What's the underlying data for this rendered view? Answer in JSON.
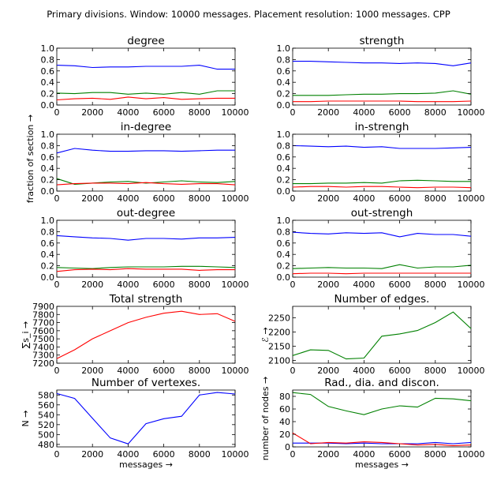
{
  "suptitle": "Primary divisions. Window: 10000 messages. Placement resolution: 1000 messages. CPP",
  "shared_ylabel_frac": "fraction of section →",
  "colors": {
    "blue": "#0000ff",
    "green": "#008000",
    "red": "#ff0000"
  },
  "chart_data": [
    {
      "id": "degree",
      "type": "line",
      "title": "degree",
      "xlim": [
        0,
        10000
      ],
      "ylim": [
        0,
        1.0
      ],
      "xticks": [
        "0",
        "2000",
        "4000",
        "6000",
        "8000",
        "10000"
      ],
      "yticks": [
        "0.0",
        "0.2",
        "0.4",
        "0.6",
        "0.8",
        "1.0"
      ],
      "x": [
        0,
        1000,
        2000,
        3000,
        4000,
        5000,
        6000,
        7000,
        8000,
        9000,
        10000
      ],
      "series": [
        {
          "color": "#0000ff",
          "values": [
            0.7,
            0.69,
            0.66,
            0.67,
            0.67,
            0.68,
            0.68,
            0.68,
            0.7,
            0.63,
            0.63
          ]
        },
        {
          "color": "#008000",
          "values": [
            0.21,
            0.2,
            0.22,
            0.22,
            0.19,
            0.21,
            0.19,
            0.22,
            0.19,
            0.25,
            0.25
          ]
        },
        {
          "color": "#ff0000",
          "values": [
            0.09,
            0.11,
            0.12,
            0.1,
            0.14,
            0.11,
            0.13,
            0.1,
            0.11,
            0.12,
            0.12
          ]
        }
      ]
    },
    {
      "id": "strength",
      "type": "line",
      "title": "strength",
      "xlim": [
        0,
        10000
      ],
      "ylim": [
        0,
        1.0
      ],
      "xticks": [
        "0",
        "2000",
        "4000",
        "6000",
        "8000",
        "10000"
      ],
      "yticks": [
        "0.0",
        "0.2",
        "0.4",
        "0.6",
        "0.8",
        "1.0"
      ],
      "x": [
        0,
        1000,
        2000,
        3000,
        4000,
        5000,
        6000,
        7000,
        8000,
        9000,
        10000
      ],
      "series": [
        {
          "color": "#0000ff",
          "values": [
            0.77,
            0.77,
            0.76,
            0.75,
            0.74,
            0.74,
            0.73,
            0.74,
            0.73,
            0.69,
            0.74
          ]
        },
        {
          "color": "#008000",
          "values": [
            0.17,
            0.17,
            0.17,
            0.18,
            0.19,
            0.19,
            0.2,
            0.2,
            0.21,
            0.25,
            0.19
          ]
        },
        {
          "color": "#ff0000",
          "values": [
            0.06,
            0.06,
            0.07,
            0.07,
            0.07,
            0.07,
            0.07,
            0.06,
            0.06,
            0.06,
            0.07
          ]
        }
      ]
    },
    {
      "id": "in-degree",
      "type": "line",
      "title": "in-degree",
      "xlim": [
        0,
        10000
      ],
      "ylim": [
        0,
        1.0
      ],
      "xticks": [
        "0",
        "2000",
        "4000",
        "6000",
        "8000",
        "10000"
      ],
      "yticks": [
        "0.0",
        "0.2",
        "0.4",
        "0.6",
        "0.8",
        "1.0"
      ],
      "x": [
        0,
        1000,
        2000,
        3000,
        4000,
        5000,
        6000,
        7000,
        8000,
        9000,
        10000
      ],
      "series": [
        {
          "color": "#0000ff",
          "values": [
            0.67,
            0.75,
            0.72,
            0.7,
            0.7,
            0.71,
            0.71,
            0.7,
            0.71,
            0.72,
            0.72
          ]
        },
        {
          "color": "#008000",
          "values": [
            0.22,
            0.12,
            0.14,
            0.16,
            0.17,
            0.14,
            0.16,
            0.18,
            0.16,
            0.15,
            0.17
          ]
        },
        {
          "color": "#ff0000",
          "values": [
            0.11,
            0.13,
            0.14,
            0.14,
            0.13,
            0.15,
            0.13,
            0.12,
            0.13,
            0.13,
            0.11
          ]
        }
      ]
    },
    {
      "id": "in-strengh",
      "type": "line",
      "title": "in-strengh",
      "xlim": [
        0,
        10000
      ],
      "ylim": [
        0,
        1.0
      ],
      "xticks": [
        "0",
        "2000",
        "4000",
        "6000",
        "8000",
        "10000"
      ],
      "yticks": [
        "0.0",
        "0.2",
        "0.4",
        "0.6",
        "0.8",
        "1.0"
      ],
      "x": [
        0,
        1000,
        2000,
        3000,
        4000,
        5000,
        6000,
        7000,
        8000,
        9000,
        10000
      ],
      "series": [
        {
          "color": "#0000ff",
          "values": [
            0.8,
            0.79,
            0.78,
            0.79,
            0.77,
            0.78,
            0.75,
            0.75,
            0.75,
            0.76,
            0.77
          ]
        },
        {
          "color": "#008000",
          "values": [
            0.13,
            0.13,
            0.14,
            0.14,
            0.15,
            0.14,
            0.18,
            0.19,
            0.18,
            0.17,
            0.17
          ]
        },
        {
          "color": "#ff0000",
          "values": [
            0.07,
            0.08,
            0.08,
            0.07,
            0.08,
            0.08,
            0.07,
            0.06,
            0.07,
            0.07,
            0.06
          ]
        }
      ]
    },
    {
      "id": "out-degree",
      "type": "line",
      "title": "out-degree",
      "xlim": [
        0,
        10000
      ],
      "ylim": [
        0,
        1.0
      ],
      "xticks": [
        "0",
        "2000",
        "4000",
        "6000",
        "8000",
        "10000"
      ],
      "yticks": [
        "0.0",
        "0.2",
        "0.4",
        "0.6",
        "0.8",
        "1.0"
      ],
      "x": [
        0,
        1000,
        2000,
        3000,
        4000,
        5000,
        6000,
        7000,
        8000,
        9000,
        10000
      ],
      "series": [
        {
          "color": "#0000ff",
          "values": [
            0.73,
            0.71,
            0.69,
            0.68,
            0.65,
            0.68,
            0.68,
            0.67,
            0.69,
            0.69,
            0.7
          ]
        },
        {
          "color": "#008000",
          "values": [
            0.17,
            0.16,
            0.15,
            0.17,
            0.18,
            0.18,
            0.18,
            0.19,
            0.19,
            0.18,
            0.17
          ]
        },
        {
          "color": "#ff0000",
          "values": [
            0.1,
            0.13,
            0.14,
            0.13,
            0.15,
            0.14,
            0.14,
            0.14,
            0.12,
            0.13,
            0.13
          ]
        }
      ]
    },
    {
      "id": "out-strengh",
      "type": "line",
      "title": "out-strengh",
      "xlim": [
        0,
        10000
      ],
      "ylim": [
        0,
        1.0
      ],
      "xticks": [
        "0",
        "2000",
        "4000",
        "6000",
        "8000",
        "10000"
      ],
      "yticks": [
        "0.0",
        "0.2",
        "0.4",
        "0.6",
        "0.8",
        "1.0"
      ],
      "x": [
        0,
        1000,
        2000,
        3000,
        4000,
        5000,
        6000,
        7000,
        8000,
        9000,
        10000
      ],
      "series": [
        {
          "color": "#0000ff",
          "values": [
            0.79,
            0.77,
            0.76,
            0.78,
            0.77,
            0.78,
            0.71,
            0.77,
            0.75,
            0.75,
            0.72
          ]
        },
        {
          "color": "#008000",
          "values": [
            0.15,
            0.16,
            0.17,
            0.16,
            0.16,
            0.15,
            0.22,
            0.16,
            0.18,
            0.18,
            0.21
          ]
        },
        {
          "color": "#ff0000",
          "values": [
            0.06,
            0.07,
            0.07,
            0.06,
            0.07,
            0.07,
            0.07,
            0.07,
            0.07,
            0.07,
            0.07
          ]
        }
      ]
    },
    {
      "id": "total-strength",
      "type": "line",
      "title": "Total strength",
      "ylabel": "∑s_i →",
      "xlim": [
        0,
        10000
      ],
      "ylim": [
        7200,
        7900
      ],
      "xticks": [
        "0",
        "2000",
        "4000",
        "6000",
        "8000",
        "10000"
      ],
      "yticks": [
        "7200",
        "7300",
        "7400",
        "7500",
        "7600",
        "7700",
        "7800",
        "7900"
      ],
      "x": [
        0,
        1000,
        2000,
        3000,
        4000,
        5000,
        6000,
        7000,
        8000,
        9000,
        10000
      ],
      "series": [
        {
          "color": "#ff0000",
          "values": [
            7255,
            7365,
            7500,
            7600,
            7700,
            7765,
            7815,
            7840,
            7800,
            7810,
            7715
          ]
        }
      ]
    },
    {
      "id": "number-of-edges",
      "type": "line",
      "title": "Number of edges.",
      "ylabel": "ℰ →",
      "xlim": [
        0,
        10000
      ],
      "ylim": [
        2090,
        2290
      ],
      "xticks": [
        "0",
        "2000",
        "4000",
        "6000",
        "8000",
        "10000"
      ],
      "yticks": [
        "2100",
        "2150",
        "2200",
        "2250"
      ],
      "x": [
        0,
        1000,
        2000,
        3000,
        4000,
        5000,
        6000,
        7000,
        8000,
        9000,
        10000
      ],
      "series": [
        {
          "color": "#008000",
          "values": [
            2117,
            2137,
            2135,
            2105,
            2108,
            2185,
            2193,
            2205,
            2233,
            2270,
            2212
          ]
        }
      ]
    },
    {
      "id": "number-of-vertexes",
      "type": "line",
      "title": "Number of vertexes.",
      "ylabel": "N →",
      "xlabel": "messages →",
      "xlim": [
        0,
        10000
      ],
      "ylim": [
        475,
        590
      ],
      "xticks": [
        "0",
        "2000",
        "4000",
        "6000",
        "8000",
        "10000"
      ],
      "yticks": [
        "480",
        "500",
        "520",
        "540",
        "560",
        "580"
      ],
      "x": [
        0,
        1000,
        2000,
        3000,
        4000,
        5000,
        6000,
        7000,
        8000,
        9000,
        10000
      ],
      "series": [
        {
          "color": "#0000ff",
          "values": [
            583,
            573,
            533,
            493,
            481,
            522,
            532,
            537,
            580,
            585,
            582
          ]
        }
      ]
    },
    {
      "id": "rad-dia-discon",
      "type": "line",
      "title": "Rad., dia. and discon.",
      "ylabel": "number of nodes →",
      "xlabel": "messages →",
      "xlim": [
        0,
        10000
      ],
      "ylim": [
        0,
        90
      ],
      "xticks": [
        "0",
        "2000",
        "4000",
        "6000",
        "8000",
        "10000"
      ],
      "yticks": [
        "0",
        "20",
        "40",
        "60",
        "80"
      ],
      "x": [
        0,
        1000,
        2000,
        3000,
        4000,
        5000,
        6000,
        7000,
        8000,
        9000,
        10000
      ],
      "series": [
        {
          "color": "#008000",
          "values": [
            86,
            83,
            64,
            57,
            51,
            60,
            65,
            63,
            77,
            76,
            73
          ]
        },
        {
          "color": "#0000ff",
          "values": [
            6,
            6,
            6,
            5,
            6,
            5,
            5,
            5,
            7,
            5,
            7
          ]
        },
        {
          "color": "#ff0000",
          "values": [
            22,
            5,
            7,
            6,
            8,
            7,
            5,
            3,
            4,
            2,
            3
          ]
        }
      ]
    }
  ]
}
